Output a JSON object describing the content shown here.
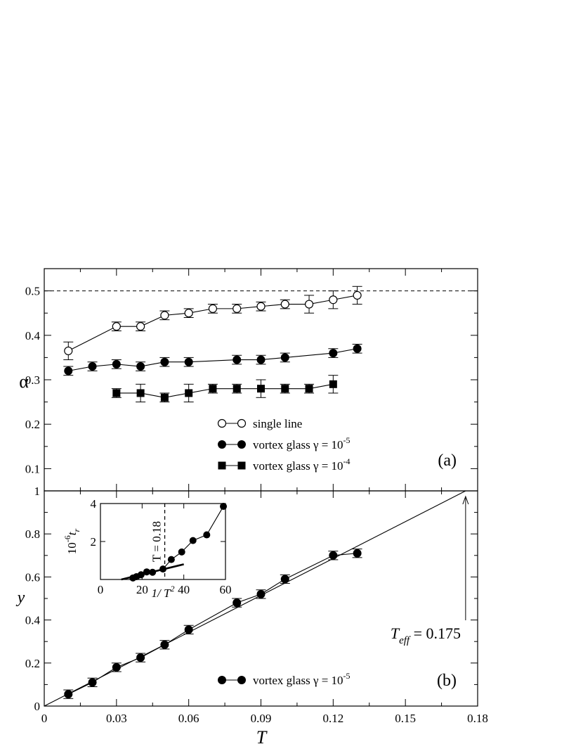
{
  "chart_data": [
    {
      "panel": "(a)",
      "type": "line",
      "ylabel": "α",
      "xlim": [
        0,
        0.18
      ],
      "ylim": [
        0.05,
        0.55
      ],
      "yticks": [
        "0.1",
        "0.2",
        "0.3",
        "0.4",
        "0.5"
      ],
      "reference_line": {
        "y": 0.5,
        "style": "dashed"
      },
      "legend_position": "bottom-center",
      "series": [
        {
          "name": "single line",
          "marker": "open-circle",
          "x": [
            0.01,
            0.03,
            0.04,
            0.05,
            0.06,
            0.07,
            0.08,
            0.09,
            0.1,
            0.11,
            0.12,
            0.13
          ],
          "y": [
            0.365,
            0.42,
            0.42,
            0.445,
            0.45,
            0.46,
            0.46,
            0.465,
            0.47,
            0.47,
            0.48,
            0.49
          ],
          "err": [
            0.02,
            0.01,
            0.01,
            0.01,
            0.01,
            0.01,
            0.01,
            0.01,
            0.01,
            0.02,
            0.02,
            0.02
          ]
        },
        {
          "name": "vortex glass γ = 10⁻⁵",
          "name_parts": {
            "text": "vortex glass ",
            "gamma": "γ = 10",
            "sup": "-5"
          },
          "marker": "filled-circle",
          "x": [
            0.01,
            0.02,
            0.03,
            0.04,
            0.05,
            0.06,
            0.08,
            0.09,
            0.1,
            0.12,
            0.13
          ],
          "y": [
            0.32,
            0.33,
            0.335,
            0.33,
            0.34,
            0.34,
            0.345,
            0.345,
            0.35,
            0.36,
            0.37
          ],
          "err": [
            0.01,
            0.01,
            0.01,
            0.01,
            0.01,
            0.01,
            0.01,
            0.01,
            0.01,
            0.01,
            0.01
          ]
        },
        {
          "name": "vortex glass γ = 10⁻⁴",
          "name_parts": {
            "text": "vortex glass ",
            "gamma": "γ = 10",
            "sup": "-4"
          },
          "marker": "filled-square",
          "x": [
            0.03,
            0.04,
            0.05,
            0.06,
            0.07,
            0.08,
            0.09,
            0.1,
            0.11,
            0.12
          ],
          "y": [
            0.27,
            0.27,
            0.26,
            0.27,
            0.28,
            0.28,
            0.28,
            0.28,
            0.28,
            0.29
          ],
          "err": [
            0.01,
            0.02,
            0.01,
            0.02,
            0.01,
            0.01,
            0.02,
            0.01,
            0.01,
            0.02
          ]
        }
      ]
    },
    {
      "panel": "(b)",
      "type": "line",
      "xlabel": "T",
      "ylabel": "y",
      "xlim": [
        0,
        0.18
      ],
      "ylim": [
        0,
        1
      ],
      "xticks": [
        "0",
        "0.03",
        "0.06",
        "0.09",
        "0.12",
        "0.15",
        "0.18"
      ],
      "yticks": [
        "0",
        "0.2",
        "0.4",
        "0.6",
        "0.8",
        "1"
      ],
      "fit_line": {
        "x": [
          0,
          0.175
        ],
        "y": [
          0,
          1
        ]
      },
      "annotation": {
        "main": "T",
        "sub": "eff",
        "value": "= 0.175",
        "points_to_x": 0.175
      },
      "legend_position": "bottom-center",
      "series": [
        {
          "name": "vortex glass γ = 10⁻⁵",
          "name_parts": {
            "text": "vortex glass ",
            "gamma": "γ = 10",
            "sup": "-5"
          },
          "marker": "filled-circle",
          "x": [
            0.01,
            0.02,
            0.03,
            0.04,
            0.05,
            0.06,
            0.08,
            0.09,
            0.1,
            0.12,
            0.13
          ],
          "y": [
            0.055,
            0.11,
            0.18,
            0.225,
            0.285,
            0.355,
            0.48,
            0.52,
            0.59,
            0.7,
            0.71
          ],
          "err": [
            0.02,
            0.02,
            0.02,
            0.02,
            0.02,
            0.02,
            0.02,
            0.02,
            0.02,
            0.02,
            0.02
          ]
        }
      ]
    },
    {
      "panel": "inset",
      "type": "line",
      "xlabel": "1/ T²",
      "xlabel_parts": {
        "main": "1/ T",
        "sup": "2"
      },
      "ylabel": "10⁻⁶ t_r",
      "ylabel_parts": {
        "base": "10",
        "sup": "-6",
        "var": "t",
        "sub": "r"
      },
      "xlim": [
        0,
        60
      ],
      "ylim": [
        0,
        4
      ],
      "xticks": [
        "0",
        "20",
        "40",
        "60"
      ],
      "yticks": [
        "2",
        "4"
      ],
      "vline": {
        "x": 30.86,
        "label": "T = 0.18",
        "style": "dashed"
      },
      "fit_line": {
        "x": [
          10,
          40
        ],
        "y": [
          0,
          0.8
        ]
      },
      "series": [
        {
          "marker": "filled-circle",
          "x": [
            15.6,
            17.3,
            19.5,
            22.2,
            25.0,
            30.0,
            34.0,
            39.0,
            44.4,
            51.0,
            59.0
          ],
          "y": [
            0.08,
            0.15,
            0.25,
            0.4,
            0.38,
            0.55,
            1.05,
            1.45,
            2.05,
            2.35,
            3.85
          ]
        }
      ]
    }
  ]
}
